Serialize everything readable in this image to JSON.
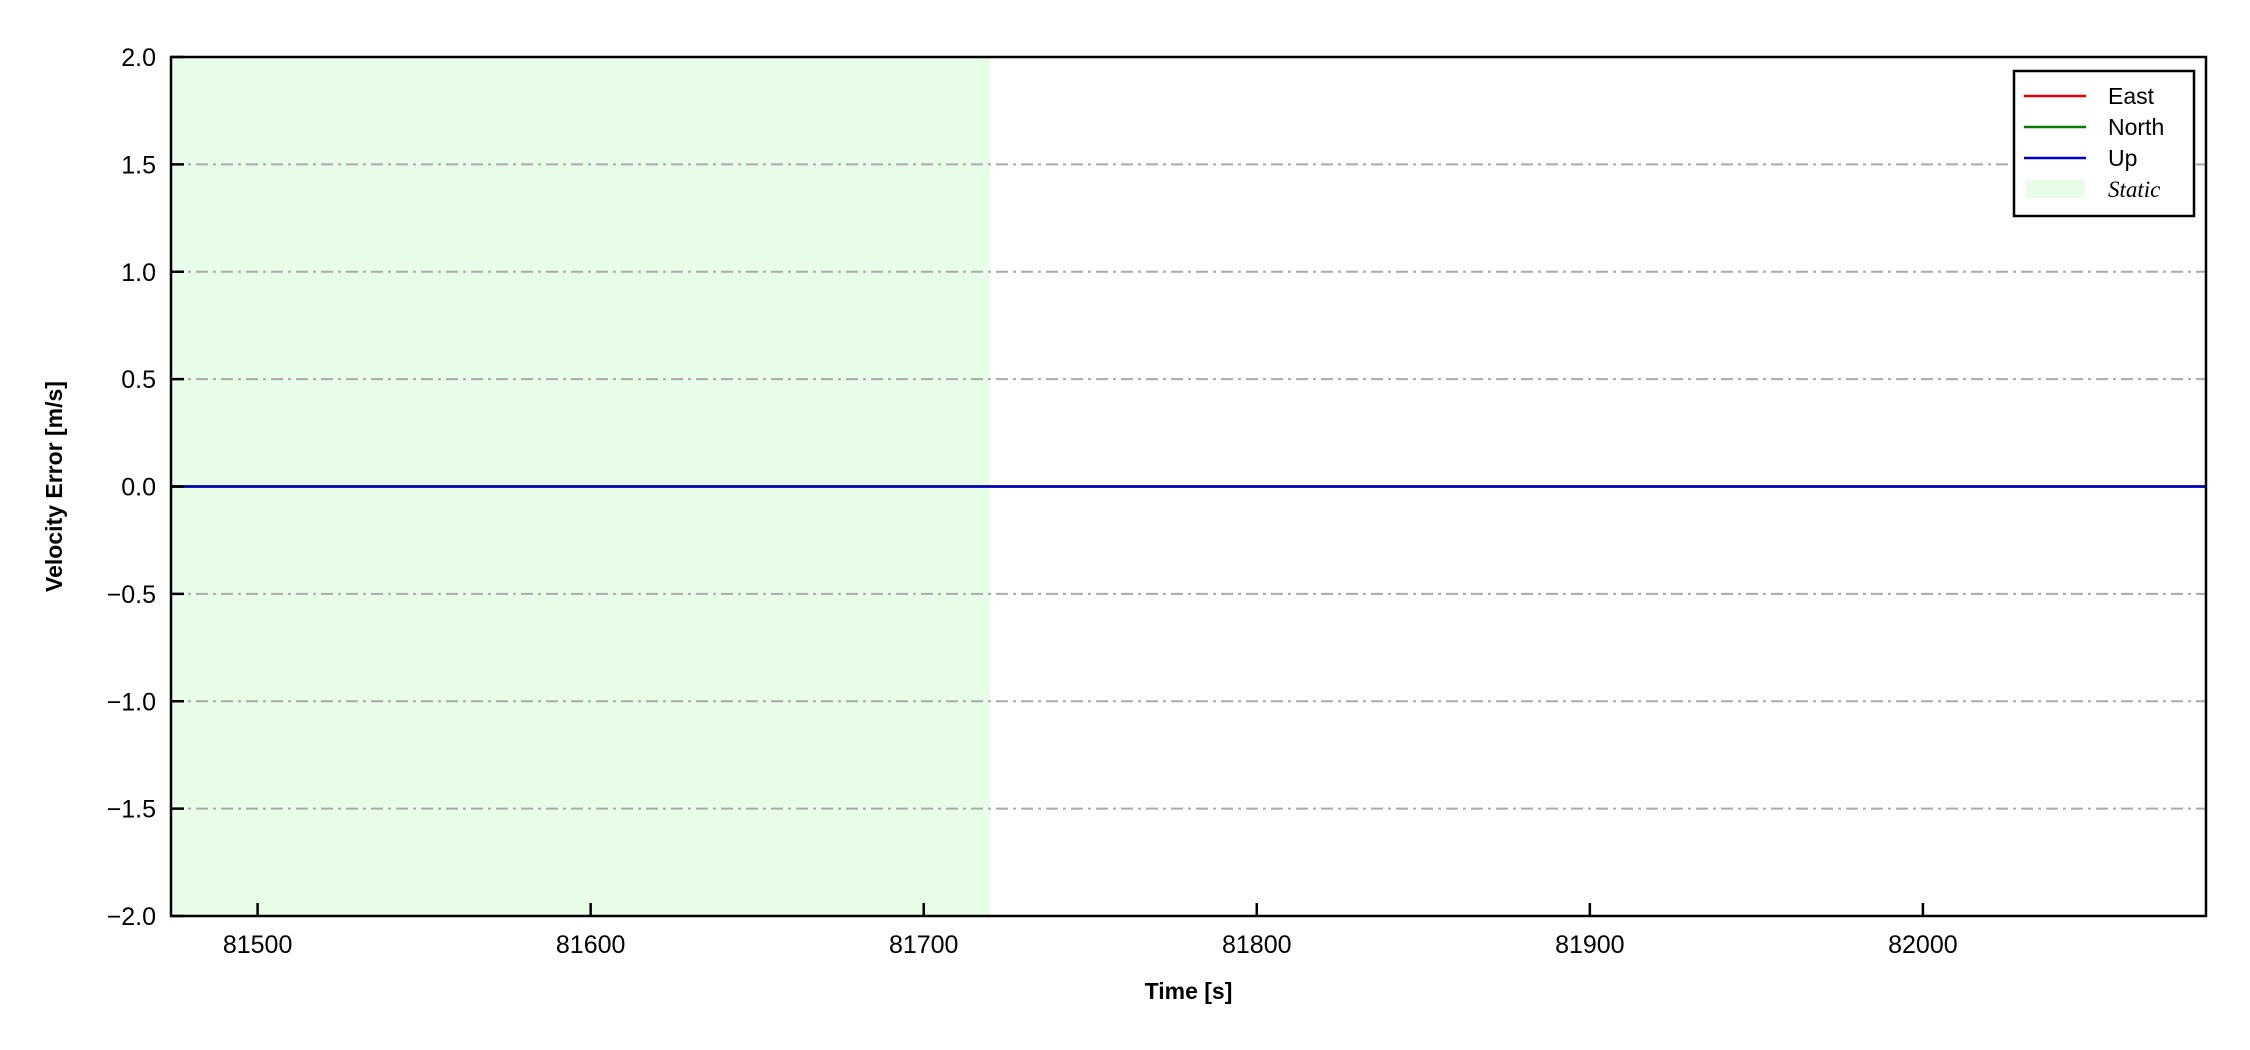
{
  "chart_data": {
    "type": "line",
    "title": "",
    "xlabel": "Time [s]",
    "ylabel": "Velocity Error [m/s]",
    "xlim": [
      81474,
      82085
    ],
    "ylim": [
      -2.0,
      2.0
    ],
    "xticks": [
      81500,
      81600,
      81700,
      81800,
      81900,
      82000
    ],
    "xtick_labels": [
      "81500",
      "81600",
      "81700",
      "81800",
      "81900",
      "82000"
    ],
    "yticks": [
      2.0,
      1.5,
      1.0,
      0.5,
      0.0,
      -0.5,
      -1.0,
      -1.5,
      -2.0
    ],
    "ytick_labels": [
      "2.0",
      "1.5",
      "1.0",
      "0.5",
      "0.0",
      "−0.5",
      "−1.0",
      "−1.5",
      "−2.0"
    ],
    "grid": "horizontal dash-dot",
    "legend_placement": "top-right",
    "series": [
      {
        "name": "East",
        "color": "#e00000",
        "x": [
          81474,
          82085
        ],
        "y": [
          0.0,
          0.0
        ]
      },
      {
        "name": "North",
        "color": "#008000",
        "x": [
          81474,
          82085
        ],
        "y": [
          0.0,
          0.0
        ]
      },
      {
        "name": "Up",
        "color": "#0000cc",
        "x": [
          81474,
          82085
        ],
        "y": [
          0.0,
          0.0
        ]
      }
    ],
    "shaded_regions": [
      {
        "name": "Static",
        "color": "#e8fde8",
        "x": [
          81474,
          81720
        ]
      }
    ]
  }
}
